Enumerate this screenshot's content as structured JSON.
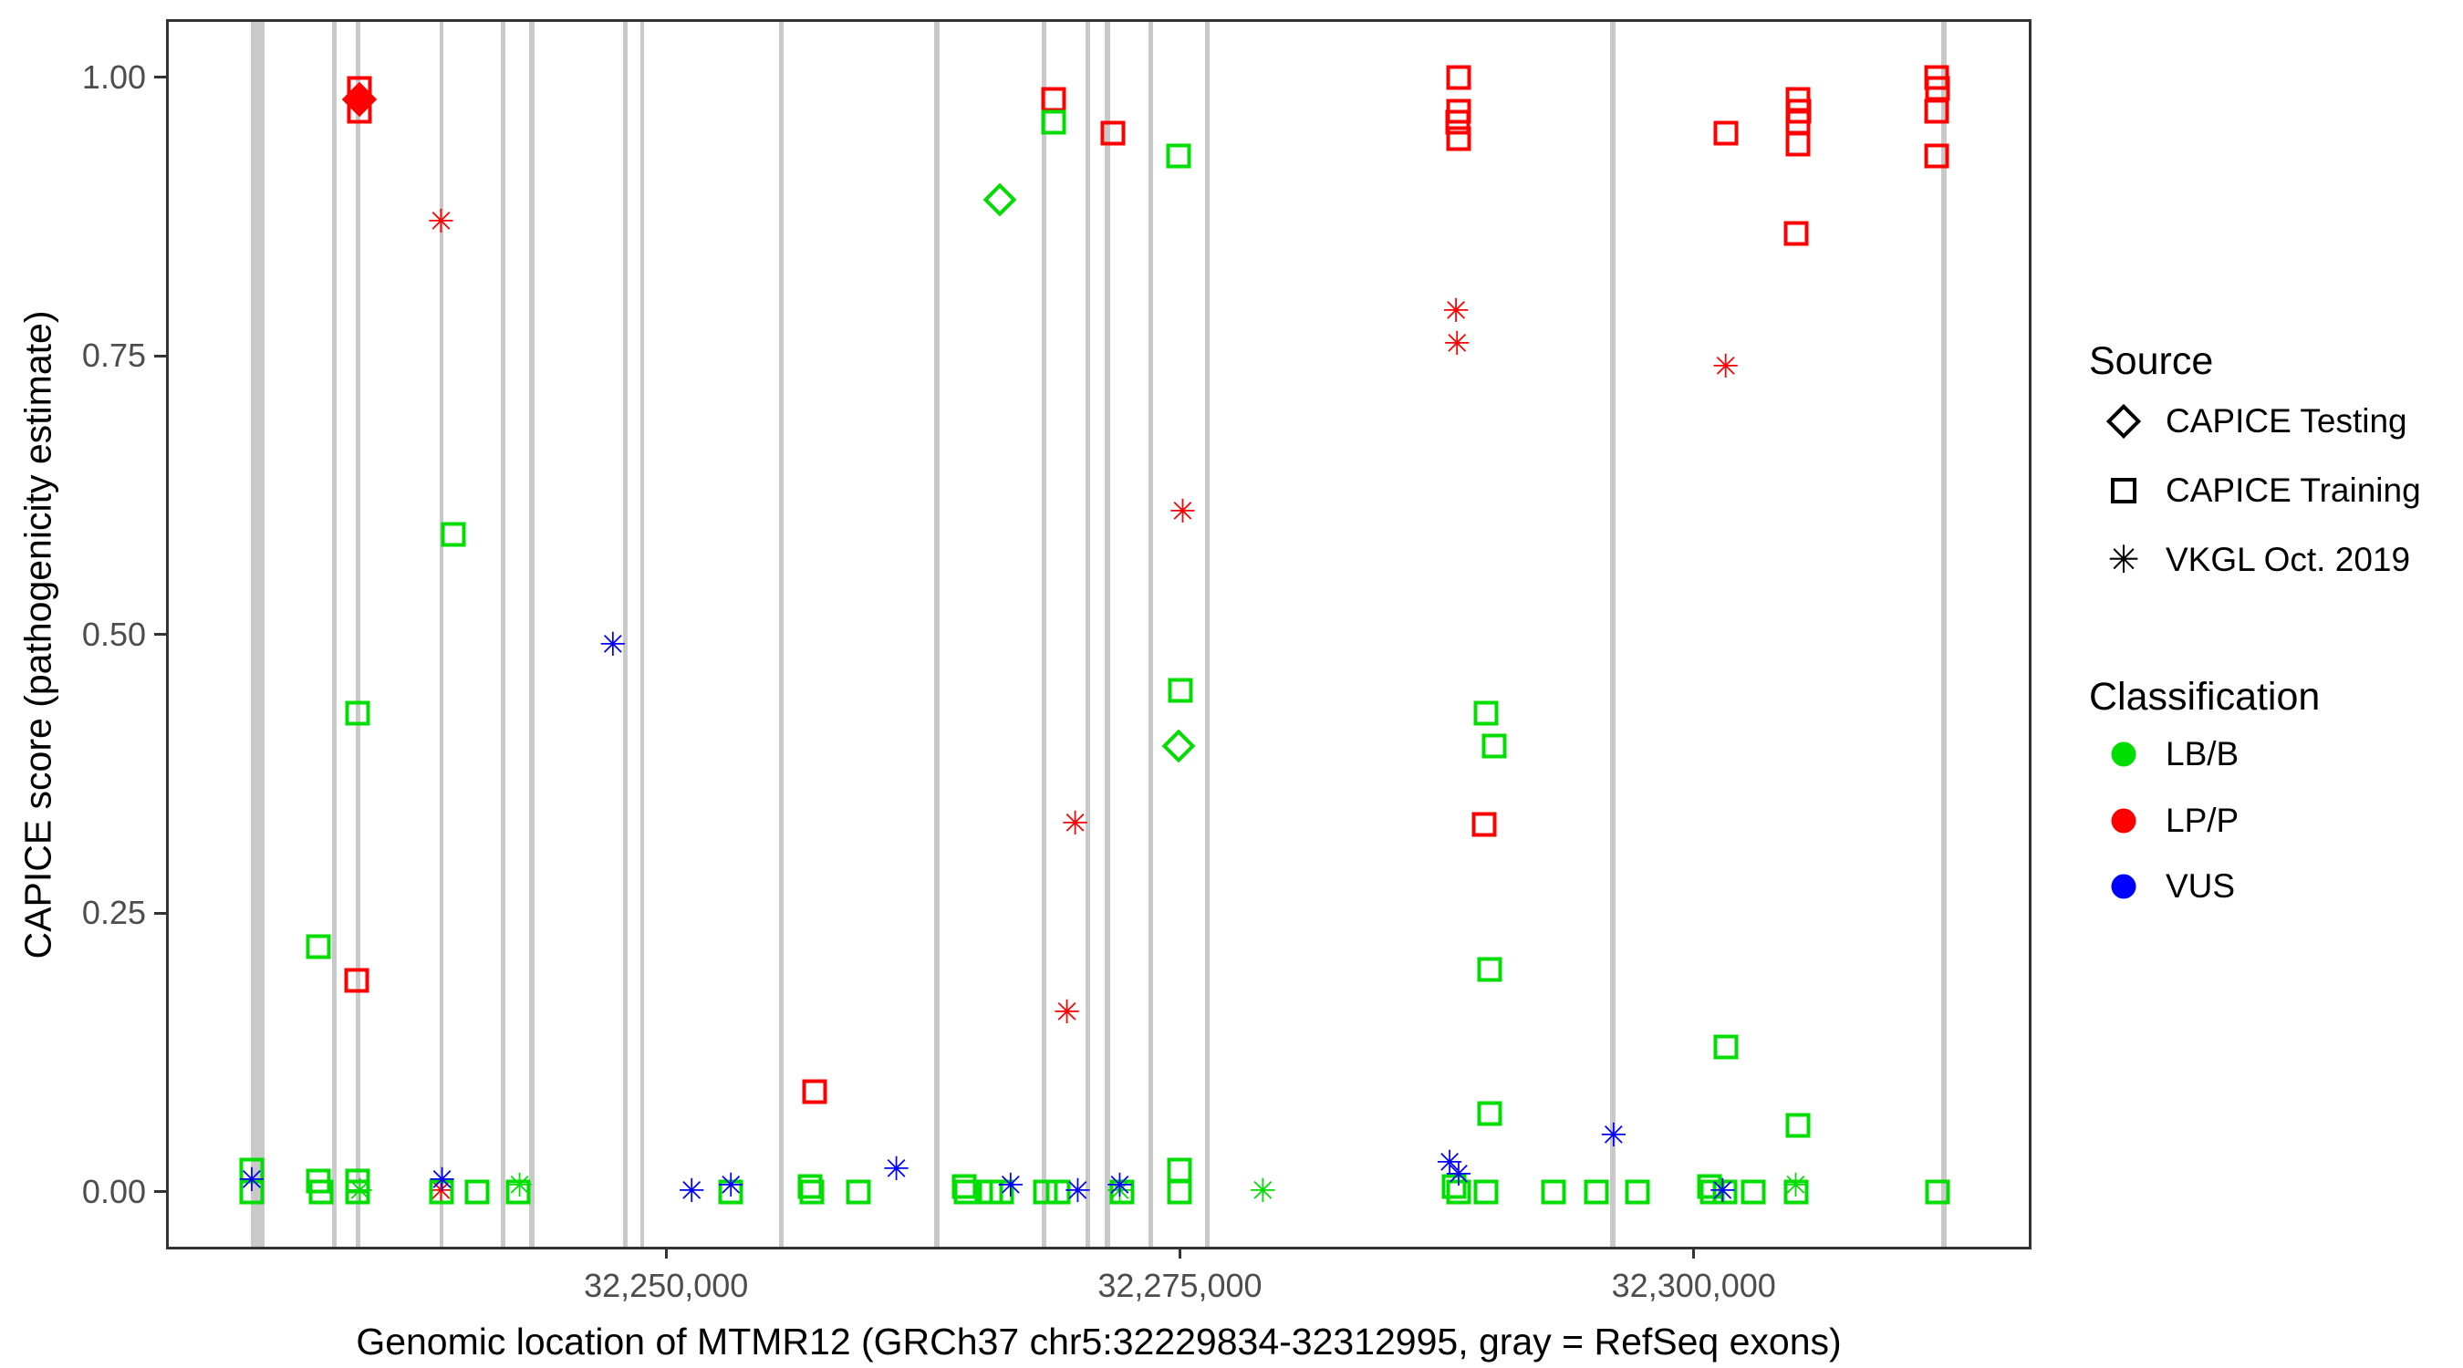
{
  "colors": {
    "LB/B": "#00dd00",
    "LP/P": "#ff0000",
    "VUS": "#0000ff"
  },
  "glyphs": {
    "asterisk": "✳"
  },
  "legend": {
    "source": {
      "title": "Source",
      "items": [
        {
          "label": "CAPICE Testing",
          "glyph": "diamond"
        },
        {
          "label": "CAPICE Training",
          "glyph": "square"
        },
        {
          "label": "VKGL Oct. 2019",
          "glyph": "asterisk"
        }
      ]
    },
    "classification": {
      "title": "Classification",
      "items": [
        {
          "label": "LB/B",
          "color": "#00dd00"
        },
        {
          "label": "LP/P",
          "color": "#ff0000"
        },
        {
          "label": "VUS",
          "color": "#0000ff"
        }
      ]
    }
  },
  "chart_data": {
    "type": "scatter",
    "title": "",
    "xlabel": "Genomic location of MTMR12 (GRCh37 chr5:32229834-32312995, gray = RefSeq exons)",
    "ylabel": "CAPICE score (pathogenicity estimate)",
    "x_axis": {
      "min": 32225800,
      "max": 32316300,
      "ticks": [
        {
          "value": 32250000,
          "label": "32,250,000"
        },
        {
          "value": 32275000,
          "label": "32,275,000"
        },
        {
          "value": 32300000,
          "label": "32,300,000"
        }
      ]
    },
    "y_axis": {
      "min": -0.0491,
      "max": 1.0499,
      "ticks": [
        {
          "value": 0.0,
          "label": "0.00"
        },
        {
          "value": 0.25,
          "label": "0.25"
        },
        {
          "value": 0.5,
          "label": "0.50"
        },
        {
          "value": 0.75,
          "label": "0.75"
        },
        {
          "value": 1.0,
          "label": "1.00"
        }
      ]
    },
    "exons_note": "gray vertical bars = RefSeq exons, [start,end] genomic coords",
    "exons": [
      [
        32229790,
        32230460
      ],
      [
        32233730,
        32233950
      ],
      [
        32234880,
        32235100
      ],
      [
        32239000,
        32239180
      ],
      [
        32241970,
        32242190
      ],
      [
        32243350,
        32243620
      ],
      [
        32247920,
        32248140
      ],
      [
        32248760,
        32248940
      ],
      [
        32255500,
        32255720
      ],
      [
        32263030,
        32263300
      ],
      [
        32268260,
        32268480
      ],
      [
        32270390,
        32270610
      ],
      [
        32271360,
        32271590
      ],
      [
        32273490,
        32273710
      ],
      [
        32276240,
        32276460
      ],
      [
        32295920,
        32296190
      ],
      [
        32312050,
        32312320
      ]
    ],
    "points_note": "[genomic_position, capice_score, shape(source: square=CAPICE Training, diamond=CAPICE Testing, asterisk=VKGL Oct. 2019), classification]",
    "points": [
      [
        32235060,
        0.99,
        "square",
        "LP/P"
      ],
      [
        32235060,
        0.98,
        "diamond_filled",
        "LP/P"
      ],
      [
        32235060,
        0.97,
        "square",
        "LP/P"
      ],
      [
        32239050,
        0.87,
        "asterisk",
        "LP/P"
      ],
      [
        32234950,
        0.19,
        "square",
        "LP/P"
      ],
      [
        32257220,
        0.09,
        "square",
        "LP/P"
      ],
      [
        32268840,
        0.98,
        "square",
        "LP/P"
      ],
      [
        32271720,
        0.95,
        "square",
        "LP/P"
      ],
      [
        32275130,
        0.61,
        "asterisk",
        "LP/P"
      ],
      [
        32269900,
        0.33,
        "asterisk",
        "LP/P"
      ],
      [
        32269500,
        0.16,
        "asterisk",
        "LP/P"
      ],
      [
        32239050,
        0.0,
        "asterisk",
        "LP/P"
      ],
      [
        32288560,
        1.0,
        "square",
        "LP/P"
      ],
      [
        32288560,
        0.97,
        "square",
        "LP/P"
      ],
      [
        32288520,
        0.96,
        "square",
        "LP/P"
      ],
      [
        32288560,
        0.945,
        "square",
        "LP/P"
      ],
      [
        32288430,
        0.79,
        "asterisk",
        "LP/P"
      ],
      [
        32288480,
        0.76,
        "asterisk",
        "LP/P"
      ],
      [
        32289800,
        0.33,
        "square",
        "LP/P"
      ],
      [
        32301550,
        0.95,
        "square",
        "LP/P"
      ],
      [
        32301550,
        0.74,
        "asterisk",
        "LP/P"
      ],
      [
        32305050,
        0.98,
        "square",
        "LP/P"
      ],
      [
        32305100,
        0.97,
        "square",
        "LP/P"
      ],
      [
        32305050,
        0.96,
        "square",
        "LP/P"
      ],
      [
        32305050,
        0.94,
        "square",
        "LP/P"
      ],
      [
        32305000,
        0.86,
        "square",
        "LP/P"
      ],
      [
        32311830,
        1.0,
        "square",
        "LP/P"
      ],
      [
        32311880,
        0.99,
        "square",
        "LP/P"
      ],
      [
        32311830,
        0.97,
        "square",
        "LP/P"
      ],
      [
        32311830,
        0.93,
        "square",
        "LP/P"
      ],
      [
        32266220,
        0.89,
        "diamond",
        "LB/B"
      ],
      [
        32268840,
        0.96,
        "square",
        "LB/B"
      ],
      [
        32274950,
        0.93,
        "square",
        "LB/B"
      ],
      [
        32239670,
        0.59,
        "square",
        "LB/B"
      ],
      [
        32275040,
        0.45,
        "square",
        "LB/B"
      ],
      [
        32274950,
        0.4,
        "diamond",
        "LB/B"
      ],
      [
        32234970,
        0.43,
        "square",
        "LB/B"
      ],
      [
        32233070,
        0.22,
        "square",
        "LB/B"
      ],
      [
        32289900,
        0.43,
        "square",
        "LB/B"
      ],
      [
        32290300,
        0.4,
        "square",
        "LB/B"
      ],
      [
        32290060,
        0.2,
        "square",
        "LB/B"
      ],
      [
        32290060,
        0.07,
        "square",
        "LB/B"
      ],
      [
        32301550,
        0.13,
        "square",
        "LB/B"
      ],
      [
        32305050,
        0.06,
        "square",
        "LB/B"
      ],
      [
        32229840,
        0.02,
        "square",
        "LB/B"
      ],
      [
        32229840,
        0.0,
        "square",
        "LB/B"
      ],
      [
        32233070,
        0.01,
        "square",
        "LB/B"
      ],
      [
        32233200,
        0.0,
        "square",
        "LB/B"
      ],
      [
        32234970,
        0.01,
        "square",
        "LB/B"
      ],
      [
        32234970,
        0.0,
        "square",
        "LB/B"
      ],
      [
        32235100,
        0.0,
        "asterisk",
        "LB/B"
      ],
      [
        32239050,
        0.0,
        "square",
        "LB/B"
      ],
      [
        32240820,
        0.0,
        "square",
        "LB/B"
      ],
      [
        32242820,
        0.0,
        "square",
        "LB/B"
      ],
      [
        32242870,
        0.005,
        "asterisk",
        "LB/B"
      ],
      [
        32253150,
        0.0,
        "square",
        "LB/B"
      ],
      [
        32257000,
        0.005,
        "square",
        "LB/B"
      ],
      [
        32257100,
        0.0,
        "square",
        "LB/B"
      ],
      [
        32259350,
        0.0,
        "square",
        "LB/B"
      ],
      [
        32264490,
        0.005,
        "square",
        "LB/B"
      ],
      [
        32264600,
        0.0,
        "square",
        "LB/B"
      ],
      [
        32265780,
        0.0,
        "square",
        "LB/B"
      ],
      [
        32266310,
        0.0,
        "square",
        "LB/B"
      ],
      [
        32268440,
        0.0,
        "square",
        "LB/B"
      ],
      [
        32269060,
        0.0,
        "square",
        "LB/B"
      ],
      [
        32272070,
        0.0,
        "asterisk",
        "LB/B"
      ],
      [
        32272200,
        0.0,
        "square",
        "LB/B"
      ],
      [
        32275000,
        0.02,
        "square",
        "LB/B"
      ],
      [
        32275000,
        0.0,
        "square",
        "LB/B"
      ],
      [
        32279030,
        0.0,
        "asterisk",
        "LB/B"
      ],
      [
        32288340,
        0.005,
        "square",
        "LB/B"
      ],
      [
        32288560,
        0.0,
        "square",
        "LB/B"
      ],
      [
        32289890,
        0.0,
        "square",
        "LB/B"
      ],
      [
        32293170,
        0.0,
        "square",
        "LB/B"
      ],
      [
        32295260,
        0.0,
        "square",
        "LB/B"
      ],
      [
        32297250,
        0.0,
        "square",
        "LB/B"
      ],
      [
        32300750,
        0.005,
        "square",
        "LB/B"
      ],
      [
        32300900,
        0.0,
        "square",
        "LB/B"
      ],
      [
        32301500,
        0.0,
        "square",
        "LB/B"
      ],
      [
        32302880,
        0.0,
        "square",
        "LB/B"
      ],
      [
        32304960,
        0.005,
        "asterisk",
        "LB/B"
      ],
      [
        32305000,
        0.0,
        "square",
        "LB/B"
      ],
      [
        32311880,
        0.0,
        "square",
        "LB/B"
      ],
      [
        32247410,
        0.49,
        "asterisk",
        "VUS"
      ],
      [
        32261200,
        0.02,
        "asterisk",
        "VUS"
      ],
      [
        32296100,
        0.05,
        "asterisk",
        "VUS"
      ],
      [
        32229840,
        0.01,
        "asterisk",
        "VUS"
      ],
      [
        32239100,
        0.01,
        "asterisk",
        "VUS"
      ],
      [
        32251240,
        0.0,
        "asterisk",
        "VUS"
      ],
      [
        32253150,
        0.005,
        "asterisk",
        "VUS"
      ],
      [
        32266760,
        0.005,
        "asterisk",
        "VUS"
      ],
      [
        32270030,
        0.0,
        "asterisk",
        "VUS"
      ],
      [
        32272070,
        0.005,
        "asterisk",
        "VUS"
      ],
      [
        32288120,
        0.025,
        "asterisk",
        "VUS"
      ],
      [
        32288560,
        0.015,
        "asterisk",
        "VUS"
      ],
      [
        32301400,
        0.0,
        "asterisk",
        "VUS"
      ]
    ],
    "grid": false,
    "legend_position": "right"
  }
}
